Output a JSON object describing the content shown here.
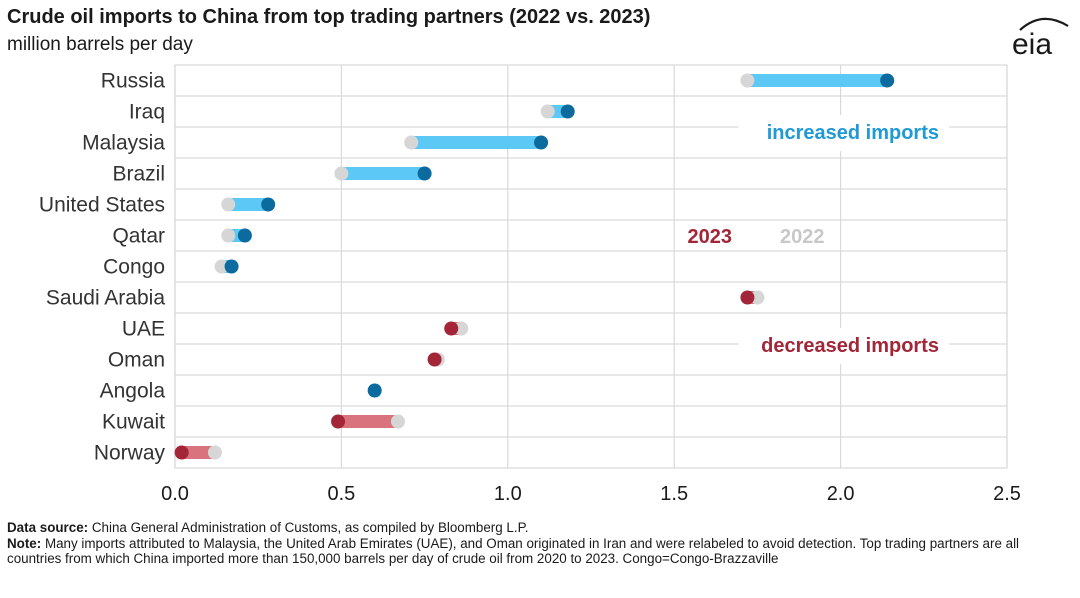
{
  "title": "Crude oil imports to China from top trading partners (2022 vs. 2023)",
  "subtitle": "million barrels per day",
  "logo_text": "eia",
  "footer": {
    "source_label": "Data source:",
    "source_text": "China General Administration of Customs, as compiled by Bloomberg L.P.",
    "note_label": "Note:",
    "note_text": "Many imports attributed to Malaysia, the United Arab Emirates (UAE), and Oman originated in Iran and were relabeled to avoid detection. Top trading partners are all countries from which China imported more than 150,000 barrels per day of crude oil from 2020 to 2023. Congo=Congo-Brazzaville"
  },
  "colors": {
    "increase_bar": "#5bc8f5",
    "increase_dot_2023": "#0b6a9e",
    "decrease_bar": "#d9737d",
    "decrease_dot_2023": "#a32638",
    "dot_2022": "#d6d6d6",
    "grid": "#d9d9d9",
    "increase_text": "#1f9ad6",
    "decrease_text": "#a32638",
    "legend_2023": "#a32638",
    "legend_2022": "#c8c8c8"
  },
  "chart_data": {
    "type": "dumbbell",
    "title": "Crude oil imports to China from top trading partners (2022 vs. 2023)",
    "ylabel": "million barrels per day",
    "xlim": [
      0,
      2.5
    ],
    "xticks": [
      "0.0",
      "0.5",
      "1.0",
      "1.5",
      "2.0",
      "2.5"
    ],
    "xtick_values": [
      0,
      0.5,
      1.0,
      1.5,
      2.0,
      2.5
    ],
    "grid": true,
    "categories": [
      "Russia",
      "Iraq",
      "Malaysia",
      "Brazil",
      "United States",
      "Qatar",
      "Congo",
      "Saudi Arabia",
      "UAE",
      "Oman",
      "Angola",
      "Kuwait",
      "Norway"
    ],
    "series": [
      {
        "name": "2022",
        "values": [
          1.72,
          1.12,
          0.71,
          0.5,
          0.16,
          0.16,
          0.14,
          1.75,
          0.86,
          0.79,
          0.6,
          0.67,
          0.12
        ]
      },
      {
        "name": "2023",
        "values": [
          2.14,
          1.18,
          1.1,
          0.75,
          0.28,
          0.21,
          0.17,
          1.72,
          0.83,
          0.78,
          0.6,
          0.49,
          0.02
        ]
      }
    ],
    "annotations": {
      "increased": "increased imports",
      "decreased": "decreased imports",
      "legend_2023": "2023",
      "legend_2022": "2022"
    }
  }
}
